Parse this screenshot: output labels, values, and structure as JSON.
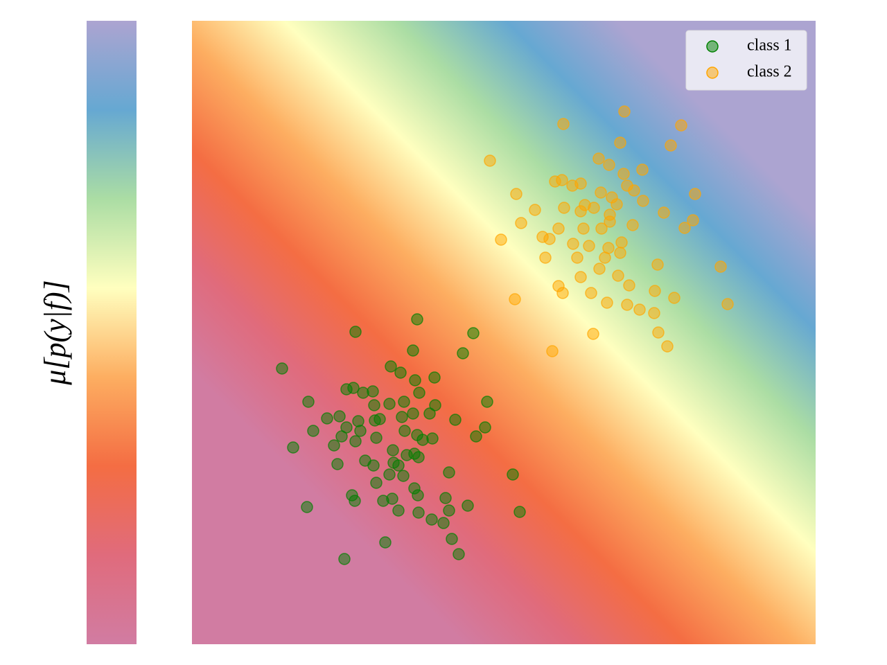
{
  "chart_data": {
    "type": "scatter",
    "colorbar_label": "μ[p(y|f)]",
    "colormap": [
      "#d17ca2",
      "#e06b7c",
      "#f46d43",
      "#fdae61",
      "#ffffbf",
      "#abdda4",
      "#66a8d2",
      "#aca4d1"
    ],
    "xlim": [
      0,
      9
    ],
    "ylim": [
      0,
      9
    ],
    "legend": "upper right",
    "series": [
      {
        "name": "class 1",
        "color": "green",
        "alpha": 0.5,
        "x": [
          1.3,
          2.36,
          3.25,
          4.06,
          3.19,
          3.91,
          2.87,
          3.01,
          3.22,
          3.5,
          2.23,
          2.33,
          2.47,
          2.61,
          3.28,
          1.68,
          2.63,
          2.85,
          3.06,
          3.51,
          4.26,
          1.95,
          2.13,
          2.4,
          2.64,
          2.71,
          3.03,
          3.19,
          3.43,
          3.8,
          1.75,
          2.23,
          2.43,
          3.07,
          3.25,
          4.23,
          2.16,
          2.36,
          2.66,
          3.33,
          3.47,
          4.1,
          1.46,
          2.05,
          2.9,
          3.21,
          3.1,
          2.5,
          2.62,
          2.91,
          2.98,
          3.27,
          2.1,
          2.85,
          3.05,
          3.71,
          4.63,
          2.66,
          3.21,
          2.31,
          2.35,
          2.76,
          2.89,
          3.26,
          3.66,
          3.98,
          1.66,
          2.98,
          3.27,
          3.71,
          4.73,
          3.46,
          3.63,
          3.75,
          2.79,
          3.85,
          2.2
        ],
        "values": [
          3.98,
          4.51,
          4.69,
          4.49,
          4.24,
          4.2,
          4.01,
          3.92,
          3.81,
          3.85,
          3.68,
          3.7,
          3.63,
          3.65,
          3.63,
          3.5,
          3.45,
          3.47,
          3.5,
          3.45,
          3.5,
          3.26,
          3.29,
          3.22,
          3.23,
          3.25,
          3.28,
          3.33,
          3.33,
          3.24,
          3.08,
          3.13,
          3.08,
          3.08,
          3.02,
          3.13,
          3.0,
          2.93,
          2.98,
          2.95,
          2.97,
          3.0,
          2.84,
          2.87,
          2.8,
          2.75,
          2.73,
          2.65,
          2.58,
          2.62,
          2.58,
          2.7,
          2.6,
          2.45,
          2.43,
          2.48,
          2.45,
          2.33,
          2.25,
          2.15,
          2.07,
          2.07,
          2.1,
          2.15,
          2.11,
          2.0,
          1.98,
          1.93,
          1.9,
          1.93,
          1.91,
          1.8,
          1.75,
          1.52,
          1.47,
          1.3,
          1.23
        ]
      },
      {
        "name": "class 2",
        "color": "orange",
        "alpha": 0.5,
        "x": [
          6.24,
          5.36,
          7.06,
          6.18,
          6.91,
          4.3,
          5.87,
          6.02,
          6.5,
          6.23,
          5.24,
          5.34,
          5.49,
          5.61,
          6.28,
          4.68,
          5.9,
          6.06,
          6.38,
          7.26,
          5.67,
          4.95,
          5.37,
          5.61,
          5.8,
          6.13,
          6.51,
          6.81,
          7.23,
          4.75,
          5.29,
          5.65,
          6.03,
          6.36,
          7.11,
          4.46,
          5.06,
          5.16,
          5.5,
          5.73,
          6.01,
          6.2,
          5.1,
          5.56,
          5.96,
          6.18,
          6.72,
          7.63,
          5.61,
          5.88,
          6.15,
          5.29,
          5.35,
          5.76,
          6.31,
          6.68,
          4.66,
          5.99,
          6.28,
          6.96,
          7.73,
          6.46,
          6.67,
          5.79,
          6.73,
          6.86,
          5.2,
          6.03,
          5.91
        ],
        "values": [
          7.69,
          7.51,
          7.49,
          7.24,
          7.2,
          6.98,
          7.01,
          6.92,
          6.85,
          6.79,
          6.68,
          6.7,
          6.62,
          6.65,
          6.62,
          6.5,
          6.52,
          6.45,
          6.55,
          6.5,
          6.34,
          6.27,
          6.3,
          6.25,
          6.3,
          6.35,
          6.4,
          6.23,
          6.12,
          6.08,
          6.0,
          6.0,
          6.1,
          6.05,
          6.01,
          5.84,
          5.88,
          5.85,
          5.78,
          5.75,
          5.72,
          5.8,
          5.58,
          5.58,
          5.58,
          5.65,
          5.48,
          5.45,
          5.3,
          5.42,
          5.32,
          5.17,
          5.07,
          5.07,
          5.18,
          5.1,
          4.98,
          4.93,
          4.9,
          5.0,
          4.91,
          4.83,
          4.78,
          4.48,
          4.5,
          4.3,
          4.23,
          6.2,
          6.0
        ]
      }
    ]
  }
}
